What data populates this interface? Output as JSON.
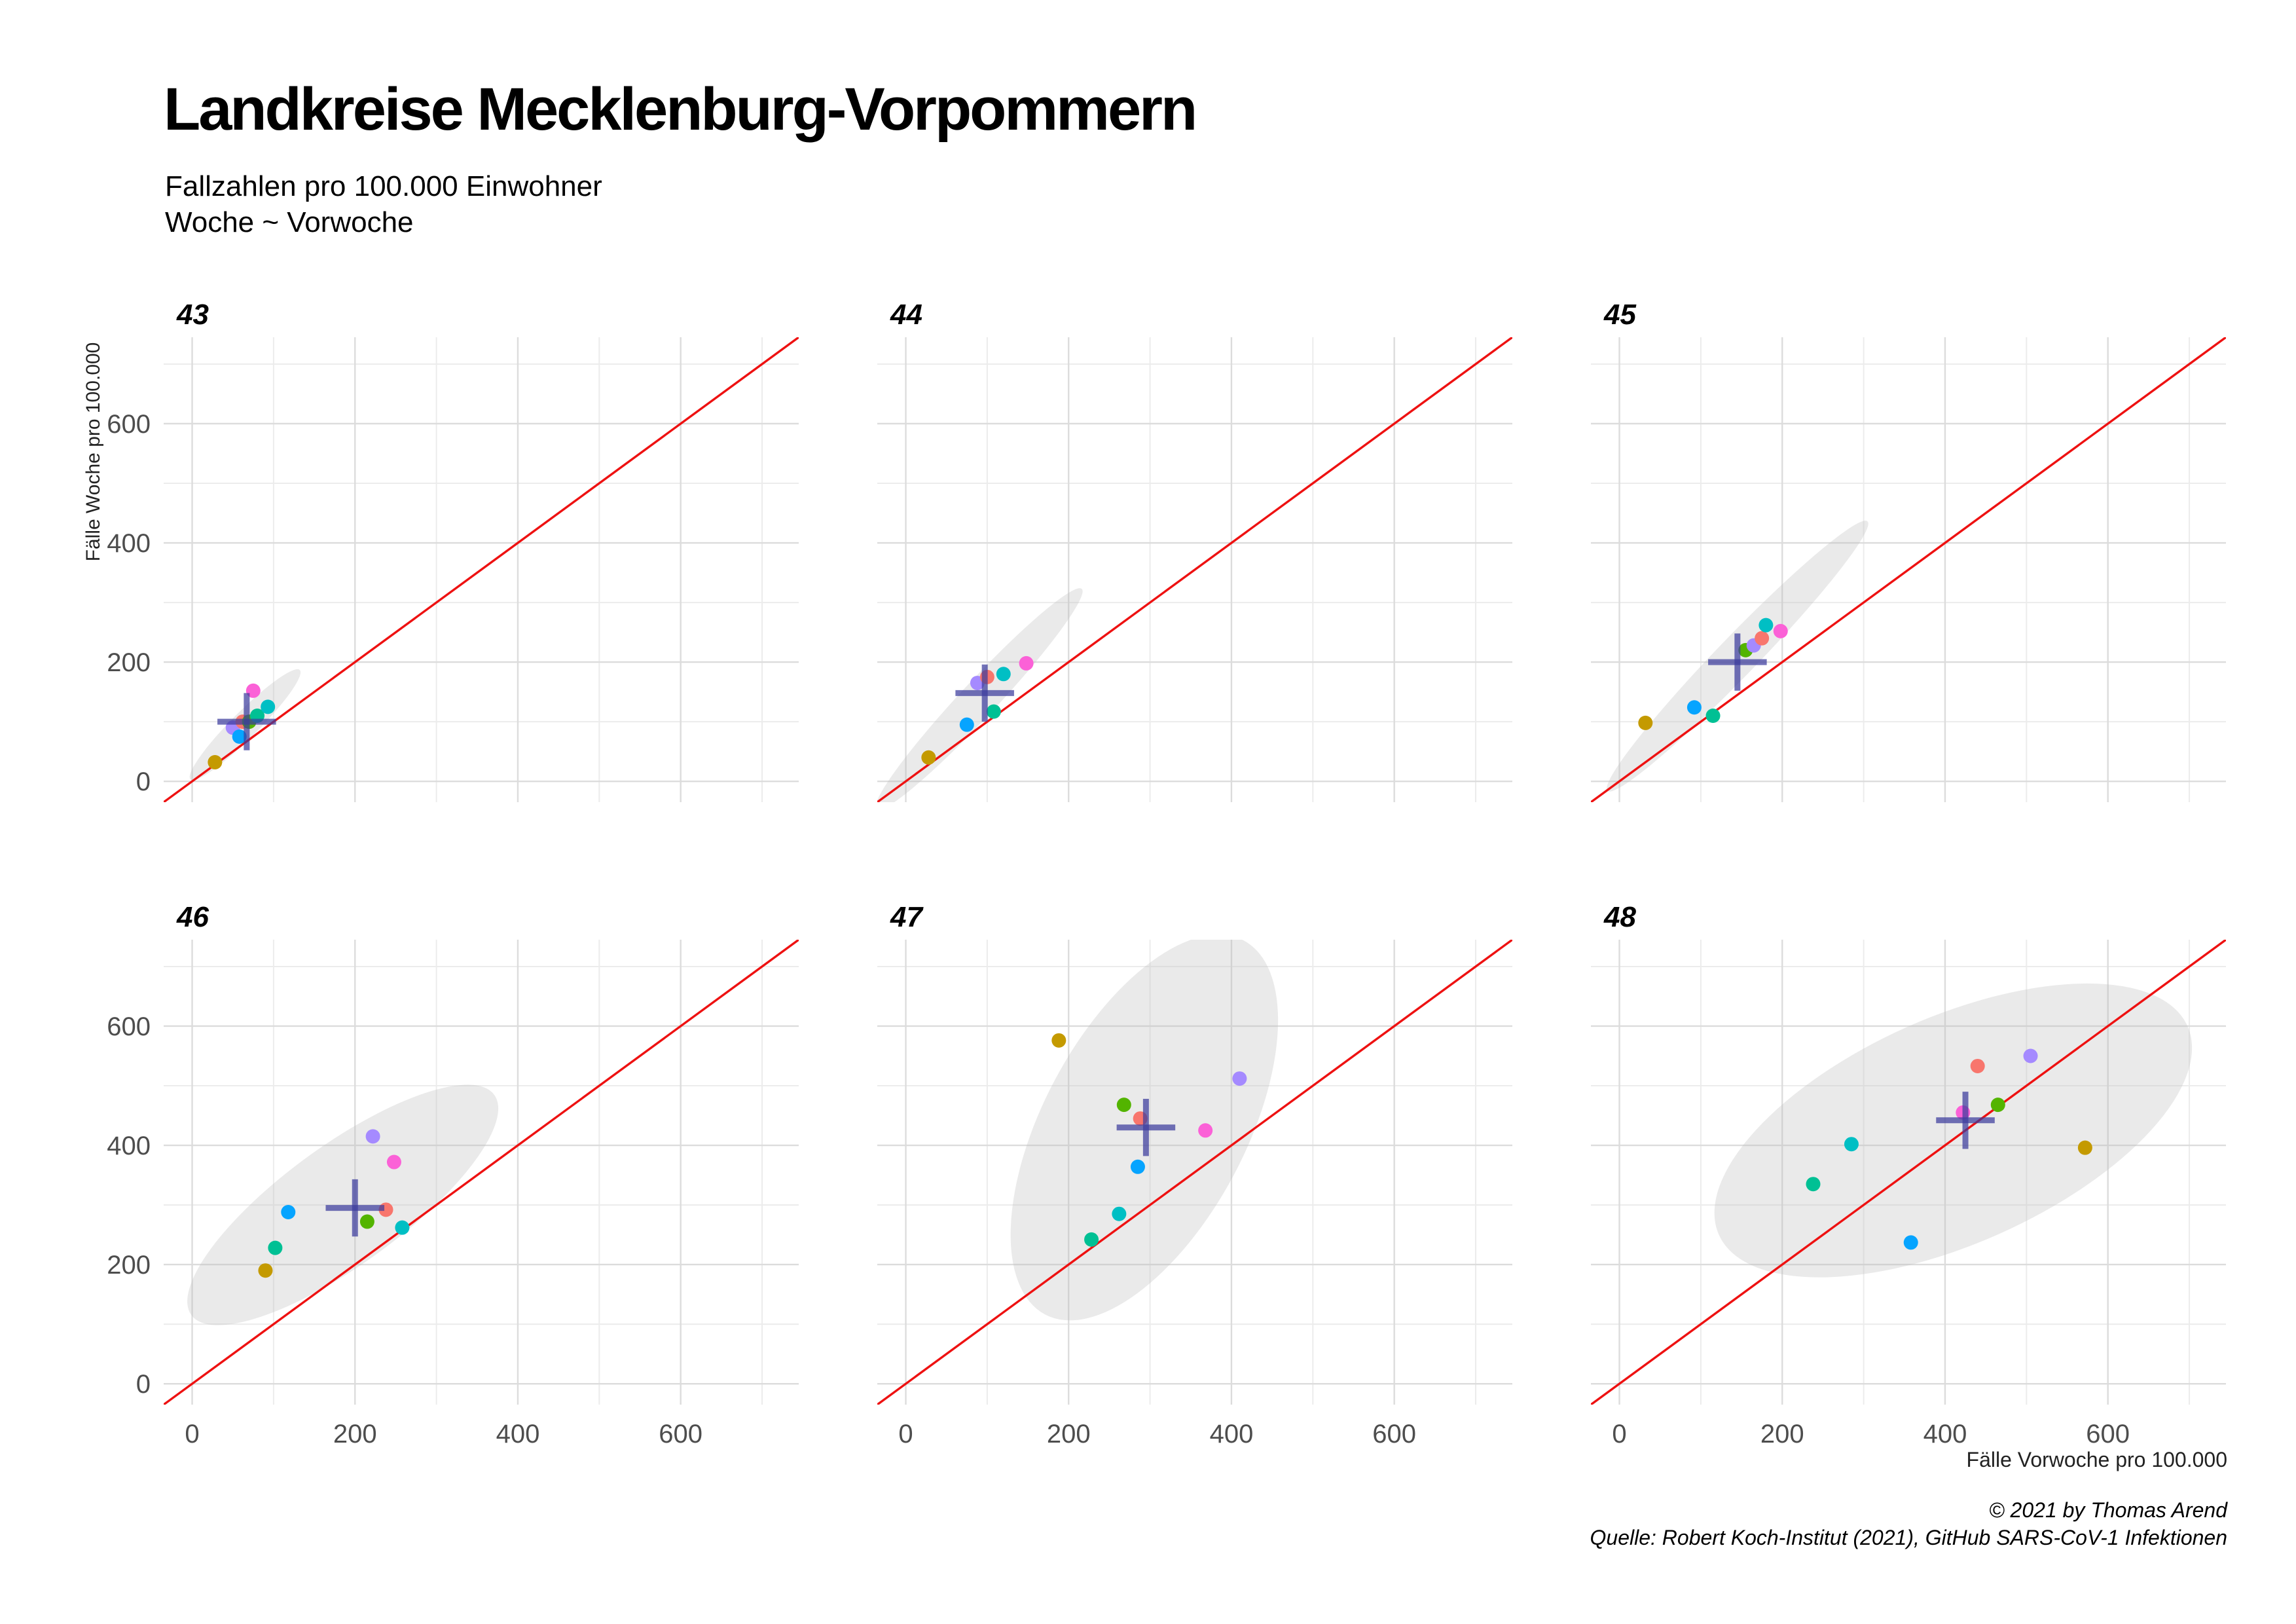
{
  "title": "Landkreise Mecklenburg-Vorpommern",
  "subtitle": [
    "Fallzahlen pro 100.000 Einwohner",
    "Woche ~ Vorwoche"
  ],
  "caption": [
    "© 2021 by Thomas Arend",
    "Quelle: Robert Koch-Institut (2021), GitHub SARS-CoV-1 Infektionen"
  ],
  "chart_data": {
    "type": "scatter",
    "xlabel": "Fälle Vorwoche pro 100.000",
    "ylabel": "Fälle Woche pro 100.000",
    "xlim": [
      -35,
      745
    ],
    "ylim": [
      -35,
      745
    ],
    "xticks": [
      0,
      200,
      400,
      600
    ],
    "yticks": [
      0,
      200,
      400,
      600
    ],
    "grid": true,
    "reference_line": {
      "slope": 1,
      "intercept": 0,
      "color": "#ee1111"
    },
    "series_colors": [
      "#f8766d",
      "#c49a00",
      "#53b400",
      "#00c094",
      "#00b6eb",
      "#06a4ff",
      "#a58aff",
      "#fb61d7"
    ],
    "panels": [
      {
        "label": "43",
        "points": [
          {
            "x": 28,
            "y": 32,
            "color": "#c49a00"
          },
          {
            "x": 50,
            "y": 90,
            "color": "#a58aff"
          },
          {
            "x": 58,
            "y": 75,
            "color": "#06a4ff"
          },
          {
            "x": 62,
            "y": 100,
            "color": "#f8766d"
          },
          {
            "x": 70,
            "y": 100,
            "color": "#53b400"
          },
          {
            "x": 75,
            "y": 152,
            "color": "#fb61d7"
          },
          {
            "x": 80,
            "y": 110,
            "color": "#00c094"
          },
          {
            "x": 93,
            "y": 125,
            "color": "#00bfc4"
          }
        ],
        "mean": {
          "x": 67,
          "y": 100
        },
        "cross": {
          "dx": 36,
          "dy": 48
        },
        "ellipse": {
          "cx": 65,
          "cy": 95,
          "rx": 95,
          "ry": 22,
          "angle": 45
        }
      },
      {
        "label": "44",
        "points": [
          {
            "x": 28,
            "y": 40,
            "color": "#c49a00"
          },
          {
            "x": 75,
            "y": 95,
            "color": "#06a4ff"
          },
          {
            "x": 88,
            "y": 165,
            "color": "#a58aff"
          },
          {
            "x": 100,
            "y": 175,
            "color": "#f8766d"
          },
          {
            "x": 108,
            "y": 117,
            "color": "#00c094"
          },
          {
            "x": 120,
            "y": 180,
            "color": "#00bfc4"
          },
          {
            "x": 148,
            "y": 198,
            "color": "#fb61d7"
          }
        ],
        "mean": {
          "x": 97,
          "y": 148
        },
        "cross": {
          "dx": 36,
          "dy": 48
        },
        "ellipse": {
          "cx": 90,
          "cy": 138,
          "rx": 185,
          "ry": 30,
          "angle": 47
        }
      },
      {
        "label": "45",
        "points": [
          {
            "x": 32,
            "y": 98,
            "color": "#c49a00"
          },
          {
            "x": 92,
            "y": 124,
            "color": "#06a4ff"
          },
          {
            "x": 115,
            "y": 110,
            "color": "#00c094"
          },
          {
            "x": 155,
            "y": 220,
            "color": "#53b400"
          },
          {
            "x": 165,
            "y": 228,
            "color": "#a58aff"
          },
          {
            "x": 175,
            "y": 240,
            "color": "#f8766d"
          },
          {
            "x": 180,
            "y": 262,
            "color": "#00bfc4"
          },
          {
            "x": 198,
            "y": 252,
            "color": "#fb61d7"
          }
        ],
        "mean": {
          "x": 145,
          "y": 200
        },
        "cross": {
          "dx": 36,
          "dy": 48
        },
        "ellipse": {
          "cx": 145,
          "cy": 210,
          "rx": 230,
          "ry": 33,
          "angle": 46
        }
      },
      {
        "label": "46",
        "points": [
          {
            "x": 90,
            "y": 190,
            "color": "#c49a00"
          },
          {
            "x": 102,
            "y": 228,
            "color": "#00c094"
          },
          {
            "x": 118,
            "y": 288,
            "color": "#06a4ff"
          },
          {
            "x": 215,
            "y": 272,
            "color": "#53b400"
          },
          {
            "x": 222,
            "y": 415,
            "color": "#a58aff"
          },
          {
            "x": 238,
            "y": 292,
            "color": "#f8766d"
          },
          {
            "x": 248,
            "y": 372,
            "color": "#fb61d7"
          },
          {
            "x": 258,
            "y": 262,
            "color": "#00bfc4"
          }
        ],
        "mean": {
          "x": 200,
          "y": 295
        },
        "cross": {
          "dx": 36,
          "dy": 48
        },
        "ellipse": {
          "cx": 185,
          "cy": 300,
          "rx": 230,
          "ry": 100,
          "angle": 36
        }
      },
      {
        "label": "47",
        "points": [
          {
            "x": 188,
            "y": 576,
            "color": "#c49a00"
          },
          {
            "x": 228,
            "y": 242,
            "color": "#00c094"
          },
          {
            "x": 262,
            "y": 285,
            "color": "#00bfc4"
          },
          {
            "x": 268,
            "y": 468,
            "color": "#53b400"
          },
          {
            "x": 285,
            "y": 364,
            "color": "#06a4ff"
          },
          {
            "x": 288,
            "y": 445,
            "color": "#f8766d"
          },
          {
            "x": 368,
            "y": 425,
            "color": "#fb61d7"
          },
          {
            "x": 410,
            "y": 512,
            "color": "#a58aff"
          }
        ],
        "mean": {
          "x": 295,
          "y": 430
        },
        "cross": {
          "dx": 36,
          "dy": 48
        },
        "ellipse": {
          "cx": 293,
          "cy": 430,
          "rx": 260,
          "ry": 170,
          "angle": 62
        }
      },
      {
        "label": "48",
        "points": [
          {
            "x": 238,
            "y": 335,
            "color": "#00c094"
          },
          {
            "x": 285,
            "y": 402,
            "color": "#00bfc4"
          },
          {
            "x": 358,
            "y": 237,
            "color": "#06a4ff"
          },
          {
            "x": 422,
            "y": 455,
            "color": "#fb61d7"
          },
          {
            "x": 440,
            "y": 533,
            "color": "#f8766d"
          },
          {
            "x": 465,
            "y": 468,
            "color": "#53b400"
          },
          {
            "x": 505,
            "y": 550,
            "color": "#a58aff"
          },
          {
            "x": 572,
            "y": 396,
            "color": "#c49a00"
          }
        ],
        "mean": {
          "x": 425,
          "y": 442
        },
        "cross": {
          "dx": 36,
          "dy": 48
        },
        "ellipse": {
          "cx": 410,
          "cy": 425,
          "rx": 315,
          "ry": 190,
          "angle": 24
        }
      }
    ]
  }
}
